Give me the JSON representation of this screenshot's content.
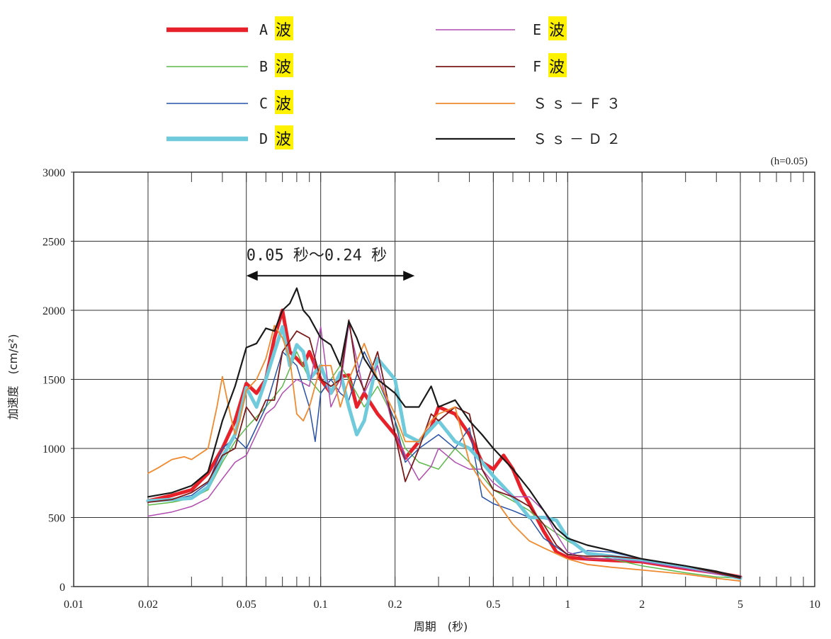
{
  "chart_data": {
    "type": "line",
    "damping_note": "(h=0.05)",
    "xlabel": "周期　(秒)",
    "ylabel": "加速度　(cm/s²)",
    "x_scale": "log",
    "xlim": [
      0.01,
      10
    ],
    "ylim": [
      0,
      3000
    ],
    "x_ticks": [
      0.01,
      0.02,
      0.05,
      0.1,
      0.2,
      0.5,
      1,
      2,
      5,
      10
    ],
    "x_tick_labels": [
      "0.01",
      "0.02",
      "0.05",
      "0.1",
      "0.2",
      "0.5",
      "1",
      "2",
      "5",
      "10"
    ],
    "y_ticks": [
      0,
      500,
      1000,
      1500,
      2000,
      2500,
      3000
    ],
    "y_tick_labels": [
      "0",
      "500",
      "1000",
      "1500",
      "2000",
      "2500",
      "3000"
    ],
    "grid": true,
    "legend_position": "top",
    "annotation": {
      "text": "0.05 秒～0.24 秒",
      "x_from": 0.05,
      "x_to": 0.24,
      "y": 2250
    },
    "series": [
      {
        "name": "A",
        "color": "#e8202a",
        "width": 5,
        "x": [
          0.02,
          0.025,
          0.03,
          0.035,
          0.04,
          0.045,
          0.05,
          0.055,
          0.06,
          0.065,
          0.07,
          0.075,
          0.08,
          0.085,
          0.09,
          0.1,
          0.11,
          0.12,
          0.13,
          0.14,
          0.15,
          0.17,
          0.2,
          0.22,
          0.25,
          0.28,
          0.3,
          0.35,
          0.4,
          0.45,
          0.5,
          0.55,
          0.6,
          0.65,
          0.7,
          0.8,
          0.9,
          1.0,
          1.2,
          1.5,
          2,
          3,
          4,
          5
        ],
        "y": [
          620,
          660,
          700,
          820,
          1000,
          1200,
          1470,
          1400,
          1500,
          1800,
          2000,
          1700,
          1650,
          1600,
          1700,
          1500,
          1400,
          1520,
          1530,
          1300,
          1400,
          1250,
          1100,
          930,
          1050,
          1150,
          1300,
          1250,
          1100,
          900,
          850,
          950,
          850,
          700,
          600,
          400,
          250,
          210,
          200,
          190,
          180,
          130,
          100,
          70
        ]
      },
      {
        "name": "B",
        "color": "#5db94a",
        "width": 1.5,
        "x": [
          0.02,
          0.025,
          0.03,
          0.035,
          0.04,
          0.045,
          0.05,
          0.06,
          0.07,
          0.08,
          0.09,
          0.1,
          0.11,
          0.12,
          0.13,
          0.15,
          0.17,
          0.2,
          0.22,
          0.25,
          0.3,
          0.35,
          0.4,
          0.45,
          0.5,
          0.6,
          0.7,
          0.8,
          1.0,
          1.2,
          1.5,
          2,
          3,
          4,
          5
        ],
        "y": [
          590,
          610,
          640,
          700,
          900,
          1050,
          1150,
          1300,
          1450,
          1700,
          1500,
          1400,
          1500,
          1600,
          1500,
          1300,
          1450,
          1200,
          1000,
          900,
          850,
          1000,
          900,
          800,
          700,
          620,
          550,
          450,
          330,
          250,
          200,
          150,
          100,
          70,
          60
        ]
      },
      {
        "name": "C",
        "color": "#2752a8",
        "width": 1.5,
        "x": [
          0.02,
          0.025,
          0.03,
          0.035,
          0.04,
          0.045,
          0.05,
          0.06,
          0.07,
          0.08,
          0.09,
          0.095,
          0.1,
          0.11,
          0.12,
          0.13,
          0.15,
          0.17,
          0.2,
          0.22,
          0.25,
          0.3,
          0.35,
          0.4,
          0.45,
          0.5,
          0.6,
          0.7,
          0.8,
          1.0,
          1.2,
          1.5,
          2,
          3,
          4,
          5
        ],
        "y": [
          620,
          630,
          660,
          750,
          1000,
          1080,
          1000,
          1300,
          1700,
          1600,
          1300,
          1050,
          1400,
          1500,
          1400,
          1350,
          1700,
          1500,
          1200,
          900,
          1000,
          1100,
          1000,
          1150,
          650,
          600,
          550,
          500,
          350,
          230,
          260,
          250,
          200,
          150,
          100,
          75
        ]
      },
      {
        "name": "D",
        "color": "#6fcbdc",
        "width": 5,
        "x": [
          0.02,
          0.025,
          0.03,
          0.035,
          0.04,
          0.045,
          0.05,
          0.055,
          0.06,
          0.065,
          0.07,
          0.075,
          0.08,
          0.085,
          0.09,
          0.1,
          0.11,
          0.12,
          0.13,
          0.14,
          0.15,
          0.17,
          0.2,
          0.22,
          0.25,
          0.3,
          0.35,
          0.4,
          0.45,
          0.5,
          0.6,
          0.7,
          0.8,
          0.9,
          1.0,
          1.2,
          1.5,
          2,
          3,
          4,
          5
        ],
        "y": [
          620,
          630,
          640,
          720,
          940,
          1100,
          1440,
          1300,
          1500,
          1700,
          1880,
          1600,
          1750,
          1700,
          1500,
          1600,
          1400,
          1550,
          1300,
          1100,
          1200,
          1650,
          1500,
          1100,
          1050,
          1200,
          1050,
          1000,
          900,
          800,
          650,
          500,
          500,
          480,
          350,
          240,
          220,
          190,
          140,
          100,
          60
        ]
      },
      {
        "name": "E",
        "color": "#b04cb0",
        "width": 1.5,
        "x": [
          0.02,
          0.025,
          0.03,
          0.035,
          0.04,
          0.045,
          0.05,
          0.06,
          0.065,
          0.07,
          0.08,
          0.09,
          0.1,
          0.11,
          0.12,
          0.13,
          0.15,
          0.17,
          0.2,
          0.22,
          0.25,
          0.28,
          0.3,
          0.35,
          0.4,
          0.45,
          0.5,
          0.6,
          0.7,
          0.8,
          0.9,
          1.0,
          1.2,
          1.5,
          2,
          3,
          4,
          5
        ],
        "y": [
          510,
          540,
          580,
          640,
          780,
          900,
          950,
          1250,
          1300,
          1400,
          1500,
          1450,
          1880,
          1300,
          1450,
          1900,
          1400,
          1600,
          1100,
          950,
          770,
          870,
          1000,
          900,
          850,
          850,
          750,
          650,
          650,
          550,
          380,
          250,
          200,
          200,
          180,
          130,
          90,
          70
        ]
      },
      {
        "name": "F",
        "color": "#7a1a1a",
        "width": 1.8,
        "x": [
          0.02,
          0.025,
          0.03,
          0.035,
          0.04,
          0.045,
          0.05,
          0.055,
          0.06,
          0.065,
          0.07,
          0.08,
          0.09,
          0.1,
          0.11,
          0.12,
          0.13,
          0.14,
          0.15,
          0.17,
          0.2,
          0.22,
          0.25,
          0.28,
          0.3,
          0.35,
          0.4,
          0.45,
          0.5,
          0.6,
          0.7,
          0.8,
          0.9,
          1.0,
          1.2,
          1.5,
          2,
          3,
          4,
          5
        ],
        "y": [
          610,
          630,
          680,
          760,
          950,
          1000,
          1300,
          1200,
          1350,
          1350,
          1700,
          1850,
          1800,
          1500,
          1450,
          1500,
          1930,
          1550,
          1420,
          1700,
          1100,
          760,
          1000,
          1250,
          1200,
          1300,
          1250,
          850,
          700,
          650,
          580,
          450,
          300,
          230,
          220,
          220,
          200,
          150,
          100,
          60
        ]
      },
      {
        "name": "Ss-F3",
        "color": "#f08a30",
        "width": 1.8,
        "x": [
          0.02,
          0.022,
          0.025,
          0.028,
          0.03,
          0.035,
          0.038,
          0.04,
          0.043,
          0.045,
          0.047,
          0.05,
          0.055,
          0.06,
          0.065,
          0.07,
          0.075,
          0.08,
          0.085,
          0.09,
          0.1,
          0.11,
          0.12,
          0.13,
          0.15,
          0.17,
          0.2,
          0.22,
          0.25,
          0.28,
          0.3,
          0.35,
          0.4,
          0.45,
          0.5,
          0.6,
          0.7,
          0.8,
          1.0,
          1.2,
          1.5,
          2,
          3,
          4,
          5
        ],
        "y": [
          820,
          860,
          920,
          940,
          920,
          1000,
          1300,
          1520,
          1250,
          1100,
          1200,
          1420,
          1500,
          1650,
          1890,
          1800,
          1650,
          1250,
          1200,
          1300,
          1600,
          1600,
          1300,
          1500,
          1760,
          1500,
          1250,
          1050,
          1050,
          1200,
          1250,
          1300,
          900,
          750,
          650,
          450,
          330,
          280,
          200,
          160,
          140,
          120,
          90,
          60,
          40
        ]
      },
      {
        "name": "Ss-D2",
        "color": "#1a1a1a",
        "width": 2.2,
        "x": [
          0.02,
          0.025,
          0.03,
          0.035,
          0.04,
          0.045,
          0.05,
          0.055,
          0.06,
          0.065,
          0.07,
          0.075,
          0.08,
          0.085,
          0.09,
          0.1,
          0.11,
          0.12,
          0.13,
          0.14,
          0.15,
          0.17,
          0.2,
          0.22,
          0.25,
          0.28,
          0.3,
          0.35,
          0.4,
          0.45,
          0.5,
          0.6,
          0.7,
          0.8,
          0.9,
          1.0,
          1.2,
          1.5,
          2,
          3,
          4,
          5
        ],
        "y": [
          650,
          680,
          730,
          830,
          1200,
          1450,
          1730,
          1760,
          1870,
          1850,
          2000,
          2050,
          2160,
          2000,
          1950,
          1800,
          1750,
          1600,
          1920,
          1800,
          1650,
          1500,
          1400,
          1300,
          1300,
          1450,
          1300,
          1350,
          1200,
          1100,
          1000,
          850,
          700,
          550,
          420,
          350,
          300,
          260,
          200,
          150,
          110,
          70
        ]
      }
    ]
  },
  "legend": [
    {
      "label": "A",
      "suffix": "波"
    },
    {
      "label": "B",
      "suffix": "波"
    },
    {
      "label": "C",
      "suffix": "波"
    },
    {
      "label": "D",
      "suffix": "波"
    },
    {
      "label": "E",
      "suffix": "波"
    },
    {
      "label": "F",
      "suffix": "波"
    },
    {
      "label": "Ｓｓ－Ｆ３",
      "suffix": ""
    },
    {
      "label": "Ｓｓ－Ｄ２",
      "suffix": ""
    }
  ],
  "colors": {
    "wave_highlight": "#fff200",
    "grid": "#333333"
  }
}
